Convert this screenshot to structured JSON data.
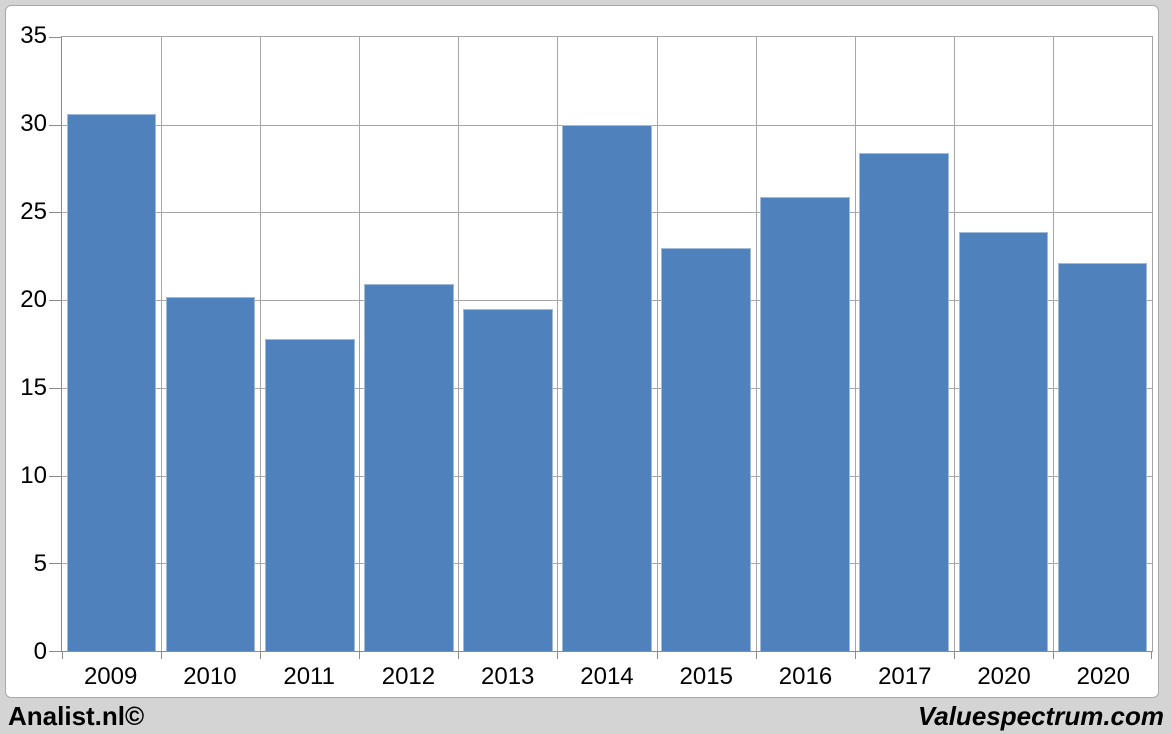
{
  "chart_data": {
    "type": "bar",
    "categories": [
      "2009",
      "2010",
      "2011",
      "2012",
      "2013",
      "2014",
      "2015",
      "2016",
      "2017",
      "2020",
      "2020"
    ],
    "values": [
      30.6,
      20.2,
      17.8,
      20.9,
      19.5,
      30.0,
      23.0,
      25.9,
      28.4,
      23.9,
      22.1
    ],
    "ylim": [
      0,
      35
    ],
    "yticks": [
      0,
      5,
      10,
      15,
      20,
      25,
      30,
      35
    ],
    "grid": true,
    "legend": false,
    "bar_color": "#4f81bd"
  },
  "footer": {
    "left_text": "Analist.nl©",
    "right_text": "Valuespectrum.com"
  },
  "colors": {
    "background": "#d4d4d4",
    "panel_bg": "#ffffff",
    "panel_border": "#a9a9a9",
    "grid": "#a6a6a6",
    "axis": "#8c8c8c",
    "bar": "#4f81bd",
    "text": "#000000"
  }
}
